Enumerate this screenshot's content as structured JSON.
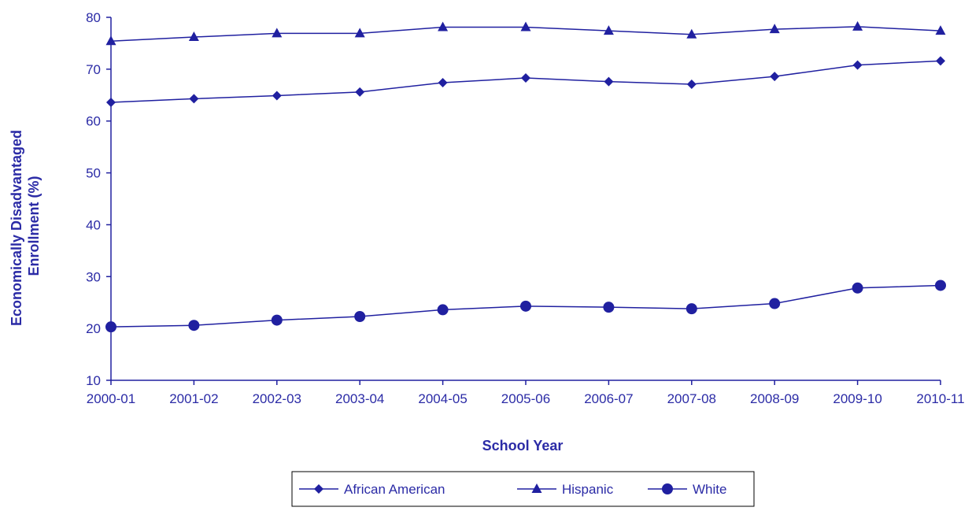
{
  "chart_data": {
    "type": "line",
    "title": "",
    "xlabel": "School Year",
    "ylabel_lines": [
      "Economically Disadvantaged",
      "Enrollment (%)"
    ],
    "categories": [
      "2000-01",
      "2001-02",
      "2002-03",
      "2003-04",
      "2004-05",
      "2005-06",
      "2006-07",
      "2007-08",
      "2008-09",
      "2009-10",
      "2010-11"
    ],
    "ylim": [
      10,
      80
    ],
    "yticks": [
      10,
      20,
      30,
      40,
      50,
      60,
      70,
      80
    ],
    "grid": false,
    "legend_position": "bottom",
    "color": "#2020a0",
    "series": [
      {
        "name": "African American",
        "marker": "diamond",
        "values": [
          63.6,
          64.3,
          64.9,
          65.6,
          67.4,
          68.3,
          67.6,
          67.1,
          68.6,
          70.8,
          71.6
        ]
      },
      {
        "name": "Hispanic",
        "marker": "triangle",
        "values": [
          75.4,
          76.2,
          76.9,
          76.9,
          78.1,
          78.1,
          77.4,
          76.7,
          77.7,
          78.2,
          77.4
        ]
      },
      {
        "name": "White",
        "marker": "circle",
        "values": [
          20.3,
          20.6,
          21.6,
          22.3,
          23.6,
          24.3,
          24.1,
          23.8,
          24.8,
          27.8,
          28.3
        ]
      }
    ]
  }
}
